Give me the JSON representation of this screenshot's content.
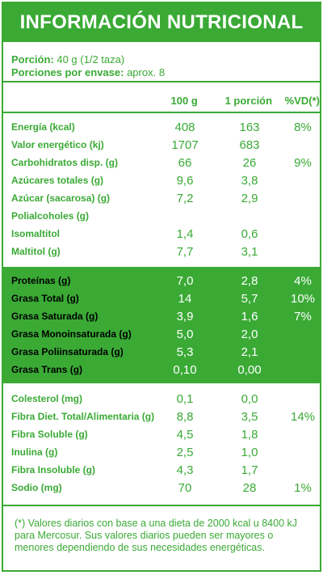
{
  "title": "INFORMACIÓN NUTRICIONAL",
  "portion": {
    "label": "Porción:",
    "value": "40 g (1/2 taza)",
    "servings_label": "Porciones por envase:",
    "servings_value": "aprox. 8"
  },
  "columns": {
    "c1": "100 g",
    "c2": "1 porción",
    "c3": "%VD(*)"
  },
  "section1": [
    {
      "label": "Energía (kcal)",
      "v100": "408",
      "vpor": "163",
      "vd": "8%"
    },
    {
      "label": "Valor energético (kj)",
      "v100": "1707",
      "vpor": "683",
      "vd": ""
    },
    {
      "label": "Carbohidratos disp. (g)",
      "v100": "66",
      "vpor": "26",
      "vd": "9%"
    },
    {
      "label": "Azúcares totales (g)",
      "v100": "9,6",
      "vpor": "3,8",
      "vd": ""
    },
    {
      "label": "Azúcar (sacarosa) (g)",
      "v100": "7,2",
      "vpor": "2,9",
      "vd": ""
    },
    {
      "label": "Polialcoholes (g)",
      "v100": "",
      "vpor": "",
      "vd": ""
    },
    {
      "label": "Isomaltitol",
      "v100": "1,4",
      "vpor": "0,6",
      "vd": ""
    },
    {
      "label": "Maltitol (g)",
      "v100": "7,7",
      "vpor": "3,1",
      "vd": ""
    }
  ],
  "section2": [
    {
      "label": "Proteínas (g)",
      "v100": "7,0",
      "vpor": "2,8",
      "vd": "4%"
    },
    {
      "label": "Grasa Total (g)",
      "v100": "14",
      "vpor": "5,7",
      "vd": "10%"
    },
    {
      "label": "Grasa Saturada (g)",
      "v100": "3,9",
      "vpor": "1,6",
      "vd": "7%"
    },
    {
      "label": "Grasa Monoinsaturada (g)",
      "v100": "5,0",
      "vpor": "2,0",
      "vd": ""
    },
    {
      "label": "Grasa Poliinsaturada (g)",
      "v100": "5,3",
      "vpor": "2,1",
      "vd": ""
    },
    {
      "label": "Grasa Trans (g)",
      "v100": "0,10",
      "vpor": "0,00",
      "vd": ""
    }
  ],
  "section3": [
    {
      "label": "Colesterol (mg)",
      "v100": "0,1",
      "vpor": "0,0",
      "vd": ""
    },
    {
      "label": "Fibra Diet. Total/Alimentaria (g)",
      "v100": "8,8",
      "vpor": "3,5",
      "vd": "14%"
    },
    {
      "label": "Fibra Soluble (g)",
      "v100": "4,5",
      "vpor": "1,8",
      "vd": ""
    },
    {
      "label": "Inulina (g)",
      "v100": "2,5",
      "vpor": "1,0",
      "vd": ""
    },
    {
      "label": "Fibra Insoluble (g)",
      "v100": "4,3",
      "vpor": "1,7",
      "vd": ""
    },
    {
      "label": "Sodio (mg)",
      "v100": "70",
      "vpor": "28",
      "vd": "1%"
    }
  ],
  "footnote": "(*) Valores diarios con base a una dieta de 2000 kcal u 8400 kJ para Mercosur. Sus valores diarios pueden ser mayores o menores dependiendo de sus necesidades energéticas."
}
